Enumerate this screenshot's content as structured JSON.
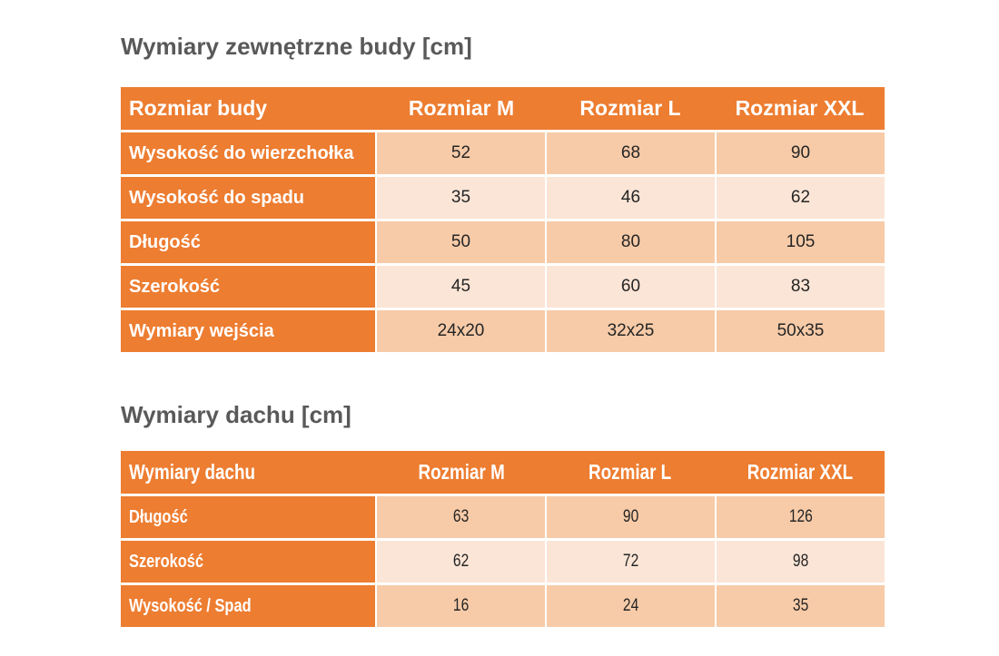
{
  "colors": {
    "accent_orange": "#ED7D31",
    "row_peach_dark": "#F7CBA8",
    "row_peach_light": "#FBE5D6",
    "title_gray": "#595959",
    "header_text": "#FFFFFF",
    "value_text": "#252525",
    "page_background": "#FFFFFF"
  },
  "tables": [
    {
      "title": "Wymiary zewnętrzne budy [cm]",
      "header": [
        "Rozmiar budy",
        "Rozmiar M",
        "Rozmiar L",
        "Rozmiar XXL"
      ],
      "rows": [
        {
          "label": "Wysokość do wierzchołka",
          "values": [
            "52",
            "68",
            "90"
          ]
        },
        {
          "label": "Wysokość do spadu",
          "values": [
            "35",
            "46",
            "62"
          ]
        },
        {
          "label": "Długość",
          "values": [
            "50",
            "80",
            "105"
          ]
        },
        {
          "label": "Szerokość",
          "values": [
            "45",
            "60",
            "83"
          ]
        },
        {
          "label": "Wymiary wejścia",
          "values": [
            "24x20",
            "32x25",
            "50x35"
          ]
        }
      ]
    },
    {
      "title": "Wymiary dachu [cm]",
      "header": [
        "Wymiary dachu",
        "Rozmiar M",
        "Rozmiar L",
        "Rozmiar XXL"
      ],
      "rows": [
        {
          "label": "Długość",
          "values": [
            "63",
            "90",
            "126"
          ]
        },
        {
          "label": "Szerokość",
          "values": [
            "62",
            "72",
            "98"
          ]
        },
        {
          "label": "Wysokość / Spad",
          "values": [
            "16",
            "24",
            "35"
          ]
        }
      ]
    }
  ]
}
